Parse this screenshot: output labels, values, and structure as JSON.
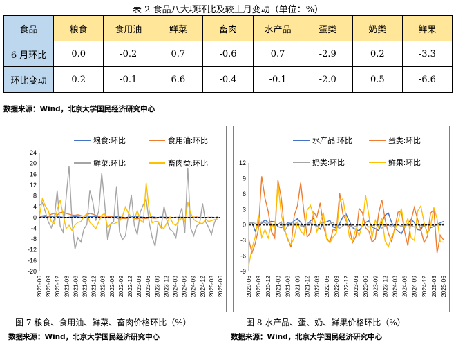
{
  "table": {
    "caption": "表 2  食品八大项环比及较上月变动（单位：%）",
    "header": [
      "食品",
      "粮食",
      "食用油",
      "鲜菜",
      "畜肉",
      "水产品",
      "蛋类",
      "奶类",
      "鲜果"
    ],
    "rows": [
      {
        "label": "6 月环比",
        "values": [
          "0.0",
          "-0.2",
          "0.7",
          "-0.6",
          "0.7",
          "-2.9",
          "0.2",
          "-3.3"
        ]
      },
      {
        "label": "环比变动",
        "values": [
          "0.2",
          "-0.1",
          "6.6",
          "-0.4",
          "-0.1",
          "-2.0",
          "0.5",
          "-6.6"
        ]
      }
    ],
    "source": "数据来源：Wind，北京大学国民经济研究中心"
  },
  "figures": {
    "fig7_caption": "图 7  粮食、食用油、鲜菜、畜肉价格环比（%）",
    "fig8_caption": "图 8 水产品、蛋、奶、鲜果价格环比（%）",
    "source_left": "数据来源：Wind，北京大学国民经济研究中心",
    "source_right": "数据来源：Wind，北京大学国民经济研究中心"
  },
  "chart_data": [
    {
      "type": "line",
      "ylim": [
        -20,
        24
      ],
      "yticks": [
        -20,
        -16,
        -12,
        -8,
        -4,
        0,
        4,
        8,
        12,
        16,
        20,
        24
      ],
      "xticks": [
        "2020-06",
        "2020-09",
        "2020-12",
        "2021-03",
        "2021-06",
        "2021-09",
        "2021-12",
        "2022-03",
        "2022-06",
        "2022-09",
        "2022-12",
        "2023-03",
        "2023-06",
        "2023-09",
        "2023-12",
        "2024-03",
        "2024-06",
        "2024-09",
        "2024-12",
        "2025-03",
        "2025-06"
      ],
      "series": [
        {
          "name": "粮食:环比",
          "color": "#4472C4",
          "values": [
            0.2,
            0.2,
            0.3,
            0.2,
            0.4,
            0.5,
            0.3,
            0.2,
            0.1,
            0.0,
            0.1,
            0.2,
            0.3,
            0.2,
            0.1,
            0.0,
            0.2,
            0.3,
            0.4,
            0.3,
            0.2,
            0.1,
            0.0,
            0.1,
            0.3,
            0.4,
            0.3,
            0.2,
            0.1,
            0.0,
            0.1,
            0.3,
            0.4,
            0.3,
            0.2,
            0.1,
            0.0,
            0.1,
            0.2,
            0.1,
            0.0,
            0.2,
            0.1,
            0.1,
            0.0,
            -0.1,
            0.0,
            0.1,
            0.1,
            0.0,
            -0.1,
            0.0,
            0.1,
            0.0,
            0.1,
            0.0,
            -0.1,
            0.0,
            0.1,
            0.0,
            -0.1,
            0.0
          ]
        },
        {
          "name": "食用油:环比",
          "color": "#ED7D31",
          "values": [
            0.5,
            0.6,
            0.8,
            0.4,
            1.2,
            1.5,
            0.9,
            1.8,
            2.0,
            1.5,
            1.2,
            0.9,
            0.8,
            1.0,
            0.7,
            0.5,
            1.0,
            1.5,
            1.2,
            0.8,
            0.4,
            0.2,
            0.1,
            0.5,
            0.3,
            0.1,
            -0.2,
            -0.5,
            -0.3,
            -0.4,
            -0.2,
            -0.1,
            -0.3,
            -0.5,
            -0.2,
            -0.3,
            -0.4,
            -0.1,
            -0.2,
            -0.3,
            -0.1,
            0.0,
            -0.2,
            -0.3,
            -0.1,
            0.0,
            0.1,
            0.0,
            -0.1,
            0.0,
            0.1,
            0.0,
            0.1,
            0.2,
            0.0,
            -0.1,
            0.0,
            0.1,
            0.0,
            -0.1,
            -0.2
          ]
        },
        {
          "name": "鲜菜:环比",
          "color": "#A5A5A5",
          "values": [
            4.4,
            5.5,
            2.1,
            -1.6,
            -3.8,
            -0.7,
            10.0,
            -3.2,
            -5.5,
            7.3,
            19.1,
            -1.4,
            -11.7,
            -7.5,
            -9.1,
            -4.3,
            -2.6,
            10.1,
            5.8,
            -1.2,
            2.3,
            16.4,
            5.3,
            -8.5,
            -2.4,
            -1.6,
            11.6,
            -5.4,
            -8.2,
            -6.7,
            1.0,
            8.4,
            -2.9,
            -6.4,
            2.0,
            4.6,
            6.8,
            -1.8,
            -7.3,
            -10.6,
            -2.1,
            -3.8,
            4.1,
            -1.3,
            -4.4,
            -5.3,
            -7.5,
            0.0,
            3.5,
            -5.7,
            18.4,
            -3.9,
            -6.8,
            -3.2,
            -2.3,
            5.2,
            -1.6,
            -3.6,
            -6.3,
            -2.0,
            0.7
          ]
        },
        {
          "name": "畜肉类:环比",
          "color": "#FFC000",
          "values": [
            0.2,
            6.9,
            4.2,
            2.6,
            -1.5,
            -2.4,
            2.8,
            6.4,
            1.0,
            -4.1,
            -2.9,
            -4.8,
            -2.8,
            -1.8,
            -1.5,
            0.2,
            1.5,
            -1.8,
            -2.8,
            -4.2,
            -1.6,
            0.8,
            1.5,
            -3.6,
            -2.5,
            -2.4,
            -1.9,
            -1.5,
            0.5,
            3.9,
            1.6,
            0.2,
            -0.7,
            2.5,
            -1.0,
            -1.8,
            12.8,
            2.6,
            -2.0,
            -1.5,
            -1.5,
            -3.6,
            -4.0,
            -1.9,
            0.2,
            -2.3,
            -2.9,
            -1.0,
            -0.3,
            -1.6,
            5.6,
            1.6,
            -0.7,
            -1.5,
            -2.0,
            -2.4,
            -0.6,
            -1.5,
            -1.2,
            -0.8,
            -0.6
          ]
        }
      ]
    },
    {
      "type": "line",
      "ylim": [
        -9,
        12
      ],
      "yticks": [
        -9,
        -6,
        -3,
        0,
        3,
        6,
        9,
        12
      ],
      "xticks": [
        "2020-06",
        "2020-09",
        "2020-12",
        "2021-03",
        "2021-06",
        "2021-09",
        "2021-12",
        "2022-03",
        "2022-06",
        "2022-09",
        "2022-12",
        "2023-03",
        "2023-06",
        "2023-09",
        "2023-12",
        "2024-03",
        "2024-06",
        "2024-09",
        "2024-12",
        "2025-03",
        "2025-06"
      ],
      "series": [
        {
          "name": "水产品:环比",
          "color": "#4472C4",
          "values": [
            0.3,
            0.5,
            -1.2,
            0.2,
            0.3,
            1.0,
            0.5,
            0.7,
            0.6,
            -0.3,
            -0.5,
            -0.2,
            0.4,
            0.3,
            0.8,
            1.2,
            0.5,
            -0.3,
            0.2,
            0.8,
            1.3,
            -0.2,
            -0.8,
            0.5,
            0.6,
            0.9,
            -0.4,
            -0.6,
            0.3,
            1.6,
            2.1,
            0.7,
            -0.5,
            -0.9,
            -1.1,
            -0.2,
            0.5,
            0.8,
            -0.4,
            -0.7,
            -1.1,
            0.6,
            1.9,
            2.3,
            0.5,
            -0.6,
            -1.2,
            -1.7,
            -0.5,
            0.3,
            1.1,
            0.5,
            -0.9,
            -1.0,
            0.4,
            -1.6,
            -0.5,
            -0.3,
            0.2,
            0.4,
            0.7
          ]
        },
        {
          "name": "蛋类:环比",
          "color": "#ED7D31",
          "values": [
            -2.8,
            -5.4,
            -3.6,
            -0.8,
            9.4,
            5.2,
            2.6,
            -1.3,
            -2.5,
            8.7,
            5.3,
            -0.9,
            -2.6,
            -4.3,
            1.8,
            3.7,
            8.2,
            2.5,
            -2.3,
            -1.5,
            2.5,
            1.6,
            4.3,
            -0.2,
            -2.5,
            -3.4,
            -0.8,
            -1.1,
            6.2,
            2.1,
            0.8,
            -0.5,
            -3.4,
            -2.2,
            3.2,
            2.4,
            -0.5,
            -1.2,
            -3.3,
            -2.7,
            2.2,
            4.9,
            1.0,
            -1.6,
            -3.2,
            -0.5,
            2.5,
            2.6,
            -1.3,
            -4.0,
            0.9,
            3.4,
            1.1,
            -0.9,
            -3.4,
            -2.2,
            2.3,
            3.0,
            -5.4,
            -2.0,
            -2.9
          ]
        },
        {
          "name": "奶类:环比",
          "color": "#A5A5A5",
          "values": [
            0.2,
            0.5,
            0.3,
            -0.5,
            0.6,
            0.4,
            0.2,
            0.3,
            -0.3,
            0.1,
            0.6,
            -1.2,
            -0.2,
            0.1,
            0.2,
            0.5,
            -0.2,
            -0.4,
            0.3,
            0.4,
            0.1,
            -0.3,
            0.2,
            0.6,
            -0.1,
            0.3,
            0.5,
            -0.4,
            -0.6,
            -0.2,
            0.3,
            -0.1,
            -0.5,
            -0.2,
            0.1,
            -0.3,
            0.2,
            -0.4,
            -0.2,
            0.1,
            -0.3,
            -0.6,
            -0.2,
            0.0,
            -0.4,
            -0.2,
            0.1,
            -0.3,
            -0.2,
            0.0,
            -0.1,
            -0.4,
            0.2,
            -0.1,
            -0.3,
            0.1,
            0.0,
            -0.2,
            0.1,
            0.0,
            0.2
          ]
        },
        {
          "name": "鲜果:环比",
          "color": "#FFC000",
          "values": [
            -7.9,
            -4.5,
            -2.3,
            1.9,
            -2.4,
            -0.9,
            -2.5,
            0.2,
            -0.7,
            8.2,
            2.1,
            -0.6,
            -3.0,
            -3.8,
            -2.5,
            0.5,
            -1.2,
            -1.9,
            2.9,
            3.8,
            1.8,
            -1.3,
            0.5,
            2.4,
            -2.7,
            -3.5,
            -2.3,
            -1.6,
            4.6,
            5.1,
            1.5,
            -2.3,
            -3.1,
            -0.7,
            -2.1,
            0.0,
            5.7,
            1.9,
            -2.5,
            0.9,
            -0.5,
            1.3,
            -3.1,
            -4.2,
            -2.3,
            -1.0,
            0.8,
            3.2,
            -0.5,
            1.3,
            -2.5,
            -3.0,
            2.7,
            3.7,
            0.5,
            -1.8,
            -0.2,
            3.4,
            1.2,
            -3.3,
            -3.3
          ]
        }
      ]
    }
  ]
}
